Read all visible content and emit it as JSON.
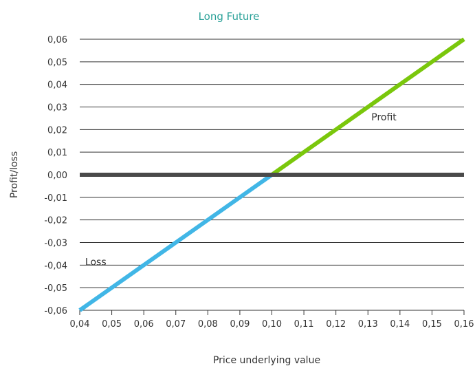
{
  "chart_data": {
    "type": "line",
    "title": "Long Future",
    "xlabel": "Price underlying value",
    "ylabel": "Profit/loss",
    "xlim": [
      0.04,
      0.16
    ],
    "ylim": [
      -0.06,
      0.06
    ],
    "x_ticks": [
      "0,04",
      "0,05",
      "0,06",
      "0,07",
      "0,08",
      "0,09",
      "0,10",
      "0,11",
      "0,12",
      "0,13",
      "0,14",
      "0,15",
      "0,16"
    ],
    "y_ticks": [
      "0,06",
      "0,05",
      "0,04",
      "0,03",
      "0,02",
      "0,01",
      "0,00",
      "-0,01",
      "-0,02",
      "-0,03",
      "-0,04",
      "-0,05",
      "-0,06"
    ],
    "x_tick_values": [
      0.04,
      0.05,
      0.06,
      0.07,
      0.08,
      0.09,
      0.1,
      0.11,
      0.12,
      0.13,
      0.14,
      0.15,
      0.16
    ],
    "y_tick_values": [
      0.06,
      0.05,
      0.04,
      0.03,
      0.02,
      0.01,
      0.0,
      -0.01,
      -0.02,
      -0.03,
      -0.04,
      -0.05,
      -0.06
    ],
    "grid": "horizontal",
    "series": [
      {
        "color": "#41b6e6",
        "x": [
          0.04,
          0.1
        ],
        "y": [
          -0.06,
          0.0
        ]
      },
      {
        "color": "#7ac70c",
        "x": [
          0.1,
          0.16
        ],
        "y": [
          0.0,
          0.06
        ]
      }
    ],
    "zero_line": {
      "y": 0.0,
      "color": "#4a4a4a"
    },
    "annotations": [
      {
        "text": "Profit",
        "x": 0.135,
        "y": 0.024
      },
      {
        "text": "Loss",
        "x": 0.045,
        "y": -0.04
      }
    ],
    "colors": {
      "title": "#2aa198",
      "grid": "#333333",
      "axis": "#333333"
    }
  }
}
